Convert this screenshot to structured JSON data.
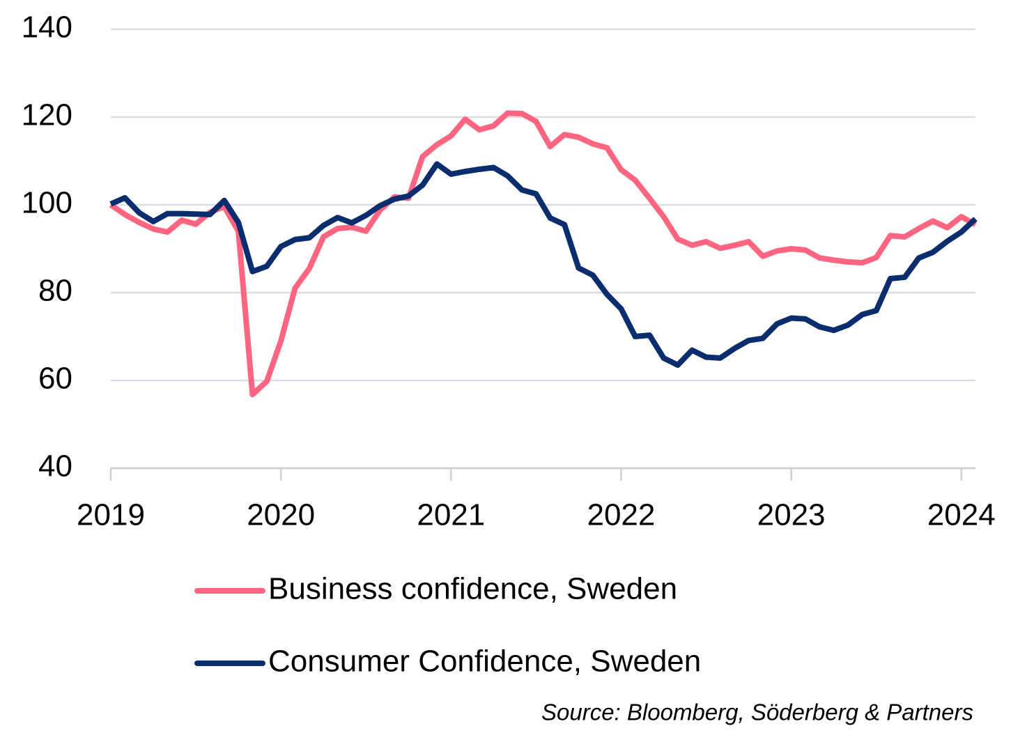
{
  "chart_data": {
    "type": "line",
    "x": [
      2019,
      2019.083,
      2019.167,
      2019.25,
      2019.333,
      2019.417,
      2019.5,
      2019.583,
      2019.667,
      2019.75,
      2019.833,
      2019.917,
      2020,
      2020.083,
      2020.167,
      2020.25,
      2020.333,
      2020.417,
      2020.5,
      2020.583,
      2020.667,
      2020.75,
      2020.833,
      2020.917,
      2021,
      2021.083,
      2021.167,
      2021.25,
      2021.333,
      2021.417,
      2021.5,
      2021.583,
      2021.667,
      2021.75,
      2021.833,
      2021.917,
      2022,
      2022.083,
      2022.167,
      2022.25,
      2022.333,
      2022.417,
      2022.5,
      2022.583,
      2022.667,
      2022.75,
      2022.833,
      2022.917,
      2023,
      2023.083,
      2023.167,
      2023.25,
      2023.333,
      2023.417,
      2023.5,
      2023.583,
      2023.667,
      2023.75,
      2023.833,
      2023.917,
      2024,
      2024.083
    ],
    "series": [
      {
        "name": "Business confidence, Sweden",
        "color": "#ff6480",
        "values": [
          100,
          97.8,
          96,
          94.5,
          93.8,
          96.5,
          95.6,
          98.3,
          99.6,
          94,
          56.8,
          59.8,
          69,
          81,
          85.5,
          92.7,
          94.6,
          94.9,
          94,
          98.8,
          101.8,
          101.5,
          111,
          113.7,
          115.7,
          119.5,
          117.1,
          118,
          120.9,
          120.8,
          119,
          113.3,
          116,
          115.4,
          113.9,
          113,
          108,
          105.6,
          101.5,
          97.3,
          92.2,
          90.8,
          91.6,
          90.1,
          90.8,
          91.6,
          88.3,
          89.5,
          90,
          89.7,
          87.9,
          87.4,
          87,
          86.8,
          88,
          93,
          92.7,
          94.6,
          96.3,
          94.8,
          97.3,
          95.5
        ]
      },
      {
        "name": "Consumer Confidence, Sweden",
        "color": "#0a2d6e",
        "values": [
          100.2,
          101.6,
          98.2,
          96.2,
          98,
          98,
          97.9,
          97.8,
          101,
          96,
          84.8,
          86,
          90.5,
          92.1,
          92.5,
          95.3,
          97.1,
          95.9,
          97.6,
          99.8,
          101.3,
          102,
          104.5,
          109.3,
          107,
          107.6,
          108.1,
          108.5,
          106.6,
          103.4,
          102.5,
          97,
          95.5,
          85.6,
          84,
          79.6,
          76.3,
          70,
          70.3,
          65.1,
          63.5,
          66.9,
          65.3,
          65.1,
          67.3,
          69.1,
          69.6,
          72.9,
          74.2,
          74,
          72.2,
          71.4,
          72.6,
          75,
          75.9,
          83.2,
          83.5,
          87.9,
          89.2,
          91.7,
          93.8,
          96.8
        ]
      }
    ],
    "xlim": [
      2019,
      2024.083
    ],
    "xticks": [
      2019,
      2020,
      2021,
      2022,
      2023,
      2024
    ],
    "ylim": [
      40,
      140
    ],
    "yticks": [
      40,
      60,
      80,
      100,
      120,
      140
    ],
    "grid": true,
    "source": "Source: Bloomberg, Söderberg & Partners"
  }
}
